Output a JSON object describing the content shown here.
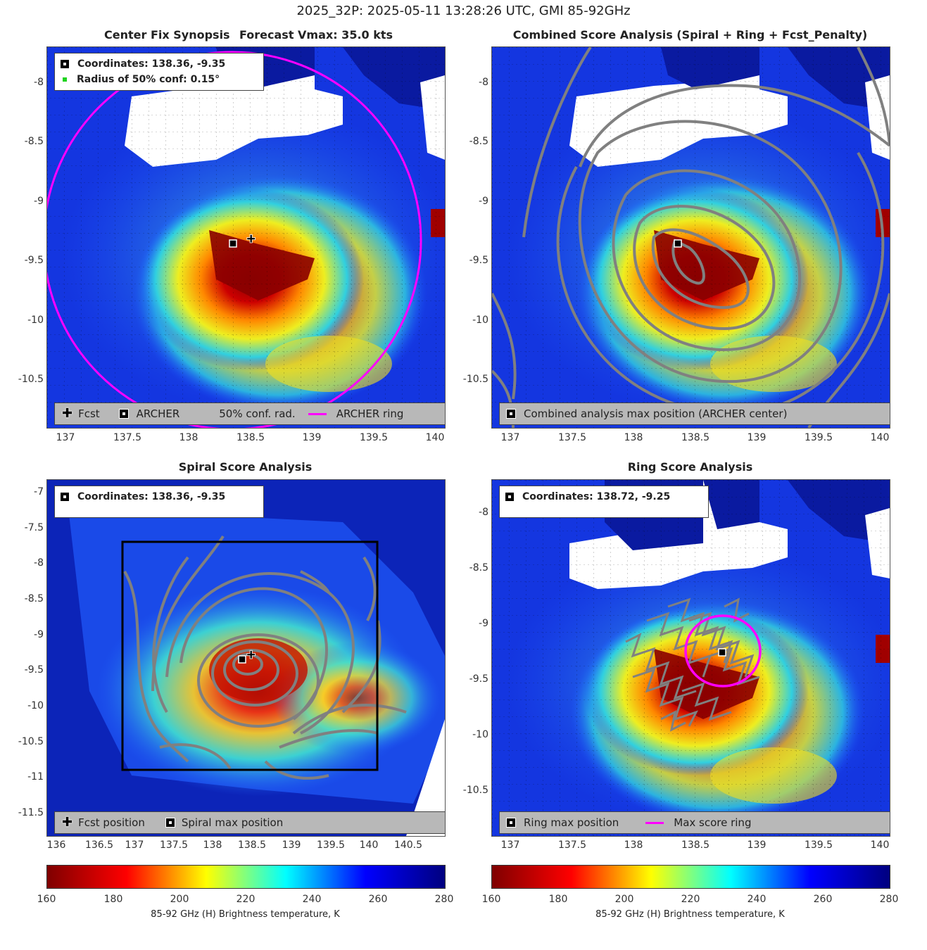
{
  "suptitle": "2025_32P: 2025-05-11 13:28:26 UTC, GMI 85-92GHz",
  "panels": {
    "center": {
      "title_left": "Center Fix Synopsis",
      "title_right": "Forecast Vmax: 35.0 kts",
      "legend_coords": "Coordinates: 138.36, -9.35",
      "legend_radius": "Radius of 50% conf: 0.15°",
      "bottom_fcst": "Fcst",
      "bottom_archer": "ARCHER",
      "bottom_conf": "50% conf. rad.",
      "bottom_ring": "ARCHER ring"
    },
    "combined": {
      "title": "Combined Score Analysis (Spiral + Ring + Fcst_Penalty)",
      "bottom_label": "Combined analysis max position (ARCHER center)"
    },
    "spiral": {
      "title": "Spiral Score Analysis",
      "legend_coords": "Coordinates: 138.36, -9.35",
      "bottom_fcst": "Fcst position",
      "bottom_max": "Spiral max position"
    },
    "ring": {
      "title": "Ring Score Analysis",
      "legend_coords": "Coordinates: 138.72, -9.25",
      "bottom_max": "Ring max position",
      "bottom_ring": "Max score ring"
    }
  },
  "axes": {
    "top_x_ticks": [
      "137",
      "137.5",
      "138",
      "138.5",
      "139",
      "139.5",
      "140"
    ],
    "top_y_ticks": [
      "-8",
      "-8.5",
      "-9",
      "-9.5",
      "-10",
      "-10.5"
    ],
    "spiral_x_ticks": [
      "136",
      "136.5",
      "137",
      "137.5",
      "138",
      "138.5",
      "139",
      "139.5",
      "140",
      "140.5"
    ],
    "spiral_y_ticks": [
      "-7",
      "-7.5",
      "-8",
      "-8.5",
      "-9",
      "-9.5",
      "-10",
      "-10.5",
      "-11",
      "-11.5"
    ],
    "ring_x_ticks": [
      "137",
      "137.5",
      "138",
      "138.5",
      "139",
      "139.5",
      "140"
    ],
    "ring_y_ticks": [
      "-8",
      "-8.5",
      "-9",
      "-9.5",
      "-10",
      "-10.5"
    ]
  },
  "colorbar": {
    "ticks": [
      "160",
      "180",
      "200",
      "220",
      "240",
      "260",
      "280"
    ],
    "label": "85-92 GHz (H) Brightness temperature, K",
    "colors": [
      "#7f0000",
      "#ff0000",
      "#ffff00",
      "#00ffff",
      "#0000ff",
      "#00007f"
    ]
  },
  "chart_data": [
    {
      "type": "heatmap",
      "panel": "Center Fix Synopsis",
      "x_range": [
        136.8,
        140.1
      ],
      "y_range": [
        -10.85,
        -7.75
      ],
      "archer_center": [
        138.36,
        -9.35
      ],
      "forecast_position": [
        138.46,
        -9.3
      ],
      "forecast_vmax_kts": 35.0,
      "conf_radius_deg": 0.15
    },
    {
      "type": "heatmap",
      "panel": "Combined Score Analysis",
      "x_range": [
        136.8,
        140.1
      ],
      "y_range": [
        -10.85,
        -7.75
      ],
      "max_position": [
        138.36,
        -9.35
      ]
    },
    {
      "type": "heatmap",
      "panel": "Spiral Score Analysis",
      "x_range": [
        135.9,
        140.95
      ],
      "y_range": [
        -11.8,
        -6.8
      ],
      "spiral_max_position": [
        138.36,
        -9.35
      ],
      "forecast_position": [
        138.46,
        -9.3
      ]
    },
    {
      "type": "heatmap",
      "panel": "Ring Score Analysis",
      "x_range": [
        136.8,
        140.1
      ],
      "y_range": [
        -10.85,
        -7.75
      ],
      "ring_max_position": [
        138.72,
        -9.25
      ]
    }
  ]
}
